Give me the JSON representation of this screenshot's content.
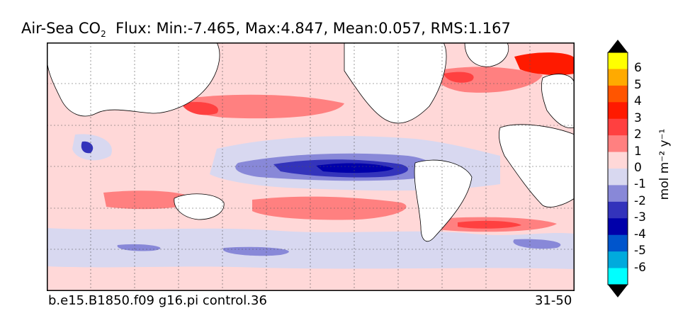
{
  "title": {
    "prefix": "Air-Sea CO",
    "subscript": "2",
    "stats": "Flux: Min:-7.465, Max:4.847, Mean:0.057, RMS:1.167"
  },
  "caption": {
    "case_name": "b.e15.B1850.f09 g16.pi control.36",
    "years": "31-50"
  },
  "colorbar": {
    "label": "mol m⁻² y⁻¹",
    "levels": [
      "6",
      "5",
      "4",
      "3",
      "2",
      "1",
      "0",
      "-1",
      "-2",
      "-3",
      "-4",
      "-5",
      "-6"
    ],
    "colors": [
      "#ffff00",
      "#ffaa00",
      "#ff5500",
      "#ff1a00",
      "#ff4040",
      "#ff8080",
      "#ffd8d8",
      "#d8d8f0",
      "#8888d8",
      "#3333bb",
      "#0000aa",
      "#0055cc",
      "#00aadd",
      "#00ffff"
    ],
    "extend_top_color": "#000000",
    "extend_bottom_color": "#000000"
  },
  "map": {
    "projection": "cylindrical equidistant",
    "land_color": "#ffffff",
    "grid": "dotted"
  }
}
